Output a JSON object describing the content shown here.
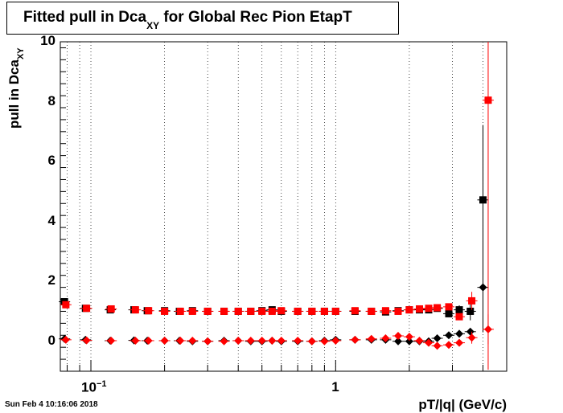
{
  "title": {
    "main": "Fitted pull in Dca",
    "sub": "XY",
    "rest": " for Global Rec Pion EtapT"
  },
  "ylabel": {
    "main": "pull in Dca",
    "sub": "XY"
  },
  "xlabel": "pT/|q| (GeV/c)",
  "datestamp": "Sun Feb  4 10:16:06 2018",
  "chart_data": {
    "type": "scatter",
    "title": "Fitted pull in Dca_XY for Global Rec Pion EtapT",
    "xlabel": "pT/|q| (GeV/c)",
    "ylabel": "pull in Dca_XY",
    "xscale": "log",
    "xlim": [
      0.075,
      5.0
    ],
    "ylim": [
      -1,
      10
    ],
    "grid": true,
    "yticks": [
      {
        "value": 0,
        "label": "0"
      },
      {
        "value": 2,
        "label": "2"
      },
      {
        "value": 4,
        "label": "4"
      },
      {
        "value": 6,
        "label": "6"
      },
      {
        "value": 8,
        "label": "8"
      },
      {
        "value": 10,
        "label": "10"
      }
    ],
    "xticks": [
      {
        "value": 0.1,
        "label": "10",
        "sup": "−1"
      },
      {
        "value": 1,
        "label": "1",
        "sup": ""
      }
    ],
    "series": [
      {
        "marker": "square",
        "color": "#000000",
        "x": [
          0.078,
          0.095,
          0.12,
          0.15,
          0.17,
          0.2,
          0.23,
          0.26,
          0.3,
          0.35,
          0.4,
          0.45,
          0.5,
          0.55,
          0.6,
          0.7,
          0.8,
          0.9,
          1.0,
          1.2,
          1.4,
          1.6,
          1.8,
          2.0,
          2.2,
          2.4,
          2.6,
          2.9,
          3.2,
          3.55,
          4.0
        ],
        "y": [
          1.32,
          1.1,
          1.05,
          1.05,
          1.02,
          1.02,
          1.0,
          1.02,
          1.0,
          1.0,
          1.0,
          1.0,
          1.02,
          1.05,
          1.0,
          1.0,
          1.0,
          1.0,
          1.0,
          1.0,
          1.0,
          0.98,
          1.02,
          1.05,
          1.05,
          1.05,
          1.1,
          0.92,
          1.05,
          1.0,
          4.72
        ],
        "yerr": [
          0.03,
          0.02,
          0.02,
          0.02,
          0.02,
          0.02,
          0.02,
          0.02,
          0.02,
          0.02,
          0.02,
          0.02,
          0.02,
          0.02,
          0.02,
          0.02,
          0.02,
          0.02,
          0.02,
          0.02,
          0.02,
          0.02,
          0.03,
          0.03,
          0.04,
          0.05,
          0.06,
          0.1,
          0.15,
          0.3,
          2.5
        ]
      },
      {
        "marker": "diamond",
        "color": "#000000",
        "x": [
          0.078,
          0.095,
          0.12,
          0.15,
          0.17,
          0.2,
          0.23,
          0.26,
          0.3,
          0.35,
          0.4,
          0.45,
          0.5,
          0.55,
          0.6,
          0.7,
          0.8,
          0.9,
          1.0,
          1.2,
          1.4,
          1.6,
          1.8,
          2.0,
          2.2,
          2.4,
          2.6,
          2.9,
          3.2,
          3.55,
          4.0
        ],
        "y": [
          0.08,
          0.05,
          0.02,
          0.03,
          0.02,
          0.02,
          0.02,
          0.0,
          0.0,
          0.02,
          0.02,
          0.0,
          0.0,
          0.02,
          0.0,
          0.0,
          0.0,
          0.02,
          0.05,
          0.05,
          0.05,
          0.05,
          0.0,
          0.0,
          0.0,
          0.0,
          0.1,
          0.2,
          0.25,
          0.32,
          1.8
        ],
        "yerr": [
          0.02,
          0.02,
          0.02,
          0.02,
          0.02,
          0.02,
          0.02,
          0.02,
          0.02,
          0.02,
          0.02,
          0.02,
          0.02,
          0.02,
          0.02,
          0.02,
          0.02,
          0.02,
          0.02,
          0.02,
          0.02,
          0.02,
          0.02,
          0.02,
          0.03,
          0.04,
          0.05,
          0.06,
          0.08,
          0.1,
          1.5
        ]
      },
      {
        "marker": "square",
        "color": "#ff0000",
        "x": [
          0.079,
          0.096,
          0.121,
          0.152,
          0.172,
          0.2,
          0.232,
          0.26,
          0.3,
          0.35,
          0.4,
          0.45,
          0.5,
          0.55,
          0.6,
          0.7,
          0.8,
          0.9,
          1.0,
          1.2,
          1.4,
          1.6,
          1.8,
          2.0,
          2.2,
          2.4,
          2.6,
          2.9,
          3.2,
          3.6,
          4.2
        ],
        "y": [
          1.22,
          1.1,
          1.08,
          1.05,
          1.02,
          1.0,
          1.0,
          1.0,
          1.0,
          1.0,
          1.0,
          1.0,
          1.0,
          1.0,
          1.02,
          1.0,
          1.0,
          1.0,
          1.0,
          1.02,
          1.0,
          1.02,
          1.0,
          1.05,
          1.08,
          1.1,
          1.12,
          1.15,
          0.82,
          1.35,
          8.05
        ],
        "yerr": [
          0.02,
          0.02,
          0.02,
          0.02,
          0.02,
          0.02,
          0.02,
          0.02,
          0.02,
          0.02,
          0.02,
          0.02,
          0.02,
          0.02,
          0.02,
          0.02,
          0.02,
          0.02,
          0.02,
          0.02,
          0.02,
          0.02,
          0.02,
          0.03,
          0.03,
          0.04,
          0.05,
          0.07,
          0.1,
          0.3,
          9.0
        ]
      },
      {
        "marker": "diamond",
        "color": "#ff0000",
        "x": [
          0.079,
          0.096,
          0.121,
          0.152,
          0.172,
          0.2,
          0.232,
          0.26,
          0.3,
          0.35,
          0.4,
          0.45,
          0.5,
          0.55,
          0.6,
          0.7,
          0.8,
          0.9,
          1.0,
          1.2,
          1.4,
          1.6,
          1.8,
          2.0,
          2.2,
          2.4,
          2.6,
          2.9,
          3.2,
          3.6,
          4.2
        ],
        "y": [
          0.05,
          0.03,
          0.02,
          0.02,
          0.02,
          0.02,
          0.02,
          0.02,
          0.0,
          0.0,
          0.02,
          0.02,
          0.02,
          0.02,
          0.02,
          0.02,
          0.0,
          0.0,
          0.02,
          0.05,
          0.08,
          0.1,
          0.18,
          0.15,
          0.02,
          -0.05,
          -0.15,
          -0.12,
          -0.05,
          0.12,
          0.4
        ],
        "yerr": [
          0.02,
          0.02,
          0.02,
          0.02,
          0.02,
          0.02,
          0.02,
          0.02,
          0.02,
          0.02,
          0.02,
          0.02,
          0.02,
          0.02,
          0.02,
          0.02,
          0.02,
          0.02,
          0.02,
          0.02,
          0.02,
          0.02,
          0.03,
          0.03,
          0.04,
          0.05,
          0.06,
          0.08,
          0.1,
          0.2,
          0.5
        ]
      }
    ]
  }
}
